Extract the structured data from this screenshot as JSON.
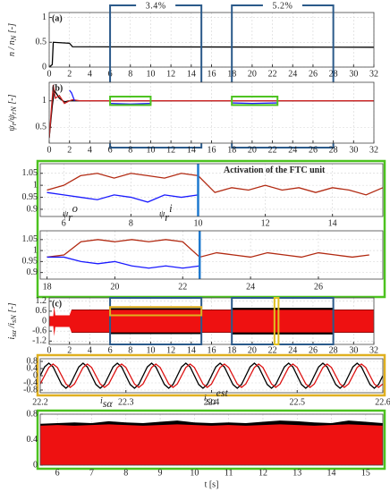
{
  "chart_data": [
    {
      "type": "line",
      "label": "(a)",
      "ylabel": [
        {
          "t": "n / n"
        },
        {
          "t": "N",
          "pos": "sub"
        },
        {
          "t": " [-]"
        }
      ],
      "xlim": [
        0,
        32
      ],
      "ylim": [
        0,
        1.1
      ],
      "xticks": [
        0,
        2,
        4,
        6,
        8,
        10,
        12,
        14,
        16,
        18,
        20,
        22,
        24,
        26,
        28,
        30,
        32
      ],
      "yticks": [
        0,
        0.5,
        1
      ],
      "grid": true,
      "series": [
        {
          "color": "#000000",
          "x": [
            0,
            0.3,
            0.4,
            2,
            2.3,
            32
          ],
          "values": [
            0,
            0.05,
            0.5,
            0.48,
            0.41,
            0.4
          ]
        }
      ],
      "regions": [
        {
          "x": [
            6,
            15
          ],
          "color": "#2b5a8a",
          "label": "3.4%"
        },
        {
          "x": [
            18,
            28
          ],
          "color": "#2b5a8a",
          "label": "5.2%"
        }
      ]
    },
    {
      "type": "line",
      "label": "(b)",
      "ylabel": [
        {
          "t": "ψ"
        },
        {
          "t": "r",
          "pos": "sub"
        },
        {
          "t": "/ψ"
        },
        {
          "t": "rN",
          "pos": "sub"
        },
        {
          "t": " [-]"
        }
      ],
      "xlim": [
        0,
        32
      ],
      "ylim": [
        0.2,
        1.35
      ],
      "xticks": [
        0,
        2,
        4,
        6,
        8,
        10,
        12,
        14,
        16,
        18,
        20,
        22,
        24,
        26,
        28,
        30,
        32
      ],
      "yticks": [
        0.5,
        1
      ],
      "grid": true,
      "series": [
        {
          "color": "#000000",
          "x": [
            0,
            0.3,
            0.5,
            1,
            1.5,
            2,
            2.5,
            32
          ],
          "values": [
            0.3,
            0.9,
            1.2,
            1.05,
            0.98,
            1,
            1,
            1
          ]
        },
        {
          "color": "#cc2222",
          "x": [
            0,
            0.4,
            0.6,
            1,
            1.5,
            2,
            2.3,
            3,
            32
          ],
          "values": [
            0.3,
            1.3,
            1.05,
            1.1,
            0.95,
            1,
            1.02,
            1,
            1
          ]
        },
        {
          "color": "#1a1aff",
          "x": [
            2,
            2.2,
            2.5,
            5,
            6,
            8,
            10,
            17,
            18,
            20,
            22.5
          ],
          "values": [
            1.2,
            1.15,
            1,
            null,
            0.95,
            0.94,
            0.95,
            null,
            0.96,
            0.95,
            0.96
          ]
        }
      ],
      "regions": [
        {
          "x": [
            6,
            10
          ],
          "y": [
            0.92,
            1.08
          ],
          "color": "#4cc21f"
        },
        {
          "x": [
            18,
            22.5
          ],
          "y": [
            0.92,
            1.08
          ],
          "color": "#4cc21f"
        }
      ]
    },
    {
      "type": "line",
      "xlim": [
        5.3,
        15.5
      ],
      "ylim": [
        0.87,
        1.09
      ],
      "xticks": [
        6,
        8,
        10,
        12,
        14
      ],
      "yticks": [
        0.9,
        0.95,
        1,
        1.05
      ],
      "grid": true,
      "series": [
        {
          "color": "#b22a12",
          "x": [
            5.5,
            6,
            6.5,
            7,
            7.5,
            8,
            8.5,
            9,
            9.5,
            10,
            10.5,
            11,
            11.5,
            12,
            12.5,
            13,
            13.5,
            14,
            14.5,
            15,
            15.5
          ],
          "values": [
            0.98,
            1.0,
            1.04,
            1.05,
            1.03,
            1.05,
            1.04,
            1.03,
            1.05,
            1.04,
            0.97,
            0.99,
            0.98,
            1.0,
            0.98,
            0.99,
            0.97,
            0.99,
            0.98,
            0.96,
            0.99
          ]
        },
        {
          "color": "#1a1aff",
          "x": [
            5.5,
            6,
            6.5,
            7,
            7.5,
            8,
            8.5,
            9,
            9.5,
            10
          ],
          "values": [
            0.97,
            0.96,
            0.95,
            0.94,
            0.96,
            0.95,
            0.93,
            0.96,
            0.95,
            0.96
          ]
        }
      ],
      "vlines": [
        {
          "x": 10,
          "color": "#1f7ad0"
        }
      ]
    },
    {
      "type": "line",
      "xlim": [
        17.8,
        27.9
      ],
      "ylim": [
        0.87,
        1.09
      ],
      "xticks": [
        18,
        20,
        22,
        24,
        26
      ],
      "yticks": [
        0.9,
        0.95,
        1,
        1.05
      ],
      "grid": true,
      "series": [
        {
          "color": "#b22a12",
          "x": [
            18,
            18.5,
            19,
            19.5,
            20,
            20.5,
            21,
            21.5,
            22,
            22.5,
            23,
            23.5,
            24,
            24.5,
            25,
            25.5,
            26,
            26.5,
            27,
            27.5
          ],
          "values": [
            0.97,
            0.98,
            1.04,
            1.05,
            1.04,
            1.05,
            1.04,
            1.05,
            1.04,
            0.97,
            0.99,
            0.98,
            0.97,
            0.99,
            0.98,
            0.97,
            0.99,
            0.98,
            0.97,
            0.98
          ]
        },
        {
          "color": "#1a1aff",
          "x": [
            18,
            18.5,
            19,
            19.5,
            20,
            20.5,
            21,
            21.5,
            22,
            22.5
          ],
          "values": [
            0.97,
            0.97,
            0.95,
            0.94,
            0.95,
            0.93,
            0.92,
            0.93,
            0.92,
            0.93
          ]
        }
      ],
      "vlines": [
        {
          "x": 22.5,
          "color": "#1f7ad0"
        }
      ]
    },
    {
      "type": "line",
      "label": "(c)",
      "ylabel": [
        {
          "t": "i"
        },
        {
          "t": "sα",
          "pos": "sub"
        },
        {
          "t": " /i"
        },
        {
          "t": "sN",
          "pos": "sub"
        },
        {
          "t": " [-]"
        }
      ],
      "xlim": [
        0,
        32
      ],
      "ylim": [
        -1.4,
        1.4
      ],
      "xticks": [
        0,
        2,
        4,
        6,
        8,
        10,
        12,
        14,
        16,
        18,
        20,
        22,
        24,
        26,
        28,
        30,
        32
      ],
      "yticks": [
        -1.2,
        -0.6,
        0,
        0.6,
        1.2
      ],
      "grid": true,
      "series": [
        {
          "color": "#000000",
          "style": "band",
          "x": [
            2.2,
            5.9,
            6,
            15,
            15.1,
            17.9,
            18,
            28,
            28.1,
            32
          ],
          "values": [
            0.7,
            0.7,
            0.78,
            0.78,
            0.7,
            0.7,
            0.8,
            0.8,
            0.7,
            0.7
          ],
          "lower": [
            -0.7,
            -0.7,
            -0.78,
            -0.78,
            -0.7,
            -0.7,
            -0.8,
            -0.8,
            -0.7,
            -0.7
          ]
        },
        {
          "color": "#ee1111",
          "style": "band",
          "x": [
            0,
            0.4,
            0.5,
            0.6,
            2,
            2.2,
            32
          ],
          "values": [
            0.3,
            0.3,
            0.9,
            0.35,
            0.35,
            0.68,
            0.68
          ],
          "lower": [
            -0.3,
            -0.3,
            -0.9,
            -0.35,
            -0.35,
            -0.68,
            -0.68
          ]
        }
      ],
      "regions": [
        {
          "x": [
            6,
            15
          ],
          "color": "#2b5a8a"
        },
        {
          "x": [
            18,
            28
          ],
          "color": "#2b5a8a"
        },
        {
          "x": [
            6,
            15
          ],
          "y": [
            0.35,
            0.85
          ],
          "color": "#e0b020"
        },
        {
          "x": [
            22.2,
            22.6
          ],
          "color": "#e0c020"
        }
      ]
    },
    {
      "type": "line",
      "xlim": [
        22.2,
        22.6
      ],
      "ylim": [
        -0.95,
        0.95
      ],
      "xticks": [
        22.2,
        22.3,
        22.4,
        22.5,
        22.6
      ],
      "yticks": [
        -0.8,
        -0.4,
        0,
        0.4,
        0.8
      ],
      "grid": true,
      "series": [
        {
          "color": "#000000",
          "x": [
            22.2,
            22.205,
            22.21,
            22.215,
            22.22,
            22.225,
            22.23,
            22.235,
            22.24,
            22.245,
            22.25,
            22.255,
            22.26,
            22.265,
            22.27,
            22.275,
            22.28,
            22.285,
            22.29,
            22.295,
            22.3,
            22.305,
            22.31,
            22.315,
            22.32,
            22.325,
            22.33,
            22.335,
            22.34,
            22.345,
            22.35,
            22.355,
            22.36,
            22.365,
            22.37,
            22.375,
            22.38,
            22.385,
            22.39,
            22.395,
            22.4,
            22.405,
            22.41,
            22.415,
            22.42,
            22.425,
            22.43,
            22.435,
            22.44,
            22.445,
            22.45,
            22.455,
            22.46,
            22.465,
            22.47,
            22.475,
            22.48,
            22.485,
            22.49,
            22.495,
            22.5,
            22.505,
            22.51,
            22.515,
            22.52,
            22.525,
            22.53,
            22.535,
            22.54,
            22.545,
            22.55,
            22.555,
            22.56,
            22.565,
            22.57,
            22.575,
            22.58,
            22.585,
            22.59,
            22.595,
            22.6
          ],
          "values": [
            0,
            0.49,
            0.7,
            0.49,
            0,
            -0.49,
            -0.7,
            -0.49,
            0,
            0.49,
            0.7,
            0.49,
            0,
            -0.49,
            -0.7,
            -0.49,
            0,
            0.49,
            0.7,
            0.49,
            0,
            -0.49,
            -0.7,
            -0.49,
            0,
            0.49,
            0.7,
            0.49,
            0,
            -0.49,
            -0.7,
            -0.49,
            0,
            0.49,
            0.7,
            0.49,
            0,
            -0.49,
            -0.7,
            -0.49,
            0,
            0.49,
            0.7,
            0.49,
            0,
            -0.49,
            -0.7,
            -0.49,
            0,
            0.49,
            0.7,
            0.49,
            0,
            -0.49,
            -0.7,
            -0.49,
            0,
            0.49,
            0.7,
            0.49,
            0,
            -0.49,
            -0.7,
            -0.49,
            0,
            0.49,
            0.7,
            0.49,
            0,
            -0.49,
            -0.7,
            -0.49,
            0,
            0.49,
            0.7,
            0.49,
            0,
            -0.49,
            -0.7,
            -0.49,
            0
          ]
        },
        {
          "color": "#dd1111",
          "x": [
            22.2,
            22.205,
            22.21,
            22.215,
            22.22,
            22.225,
            22.23,
            22.235,
            22.24,
            22.245,
            22.25,
            22.255,
            22.26,
            22.265,
            22.27,
            22.275,
            22.28,
            22.285,
            22.29,
            22.295,
            22.3,
            22.305,
            22.31,
            22.315,
            22.32,
            22.325,
            22.33,
            22.335,
            22.34,
            22.345,
            22.35,
            22.355,
            22.36,
            22.365,
            22.37,
            22.375,
            22.38,
            22.385,
            22.39,
            22.395,
            22.4,
            22.405,
            22.41,
            22.415,
            22.42,
            22.425,
            22.43,
            22.435,
            22.44,
            22.445,
            22.45,
            22.455,
            22.46,
            22.465,
            22.47,
            22.475,
            22.48,
            22.485,
            22.49,
            22.495,
            22.5,
            22.505,
            22.51,
            22.515,
            22.52,
            22.525,
            22.53,
            22.535,
            22.54,
            22.545,
            22.55,
            22.555,
            22.56,
            22.565,
            22.57,
            22.575,
            22.58,
            22.585,
            22.59,
            22.595,
            22.6
          ],
          "values": [
            -0.46,
            0,
            0.46,
            0.65,
            0.46,
            0,
            -0.46,
            -0.65,
            -0.46,
            0,
            0.46,
            0.65,
            0.46,
            0,
            -0.46,
            -0.65,
            -0.46,
            0,
            0.46,
            0.65,
            0.46,
            0,
            -0.46,
            -0.65,
            -0.46,
            0,
            0.46,
            0.65,
            0.46,
            0,
            -0.46,
            -0.65,
            -0.46,
            0,
            0.46,
            0.65,
            0.46,
            0,
            -0.46,
            -0.65,
            -0.46,
            0,
            0.46,
            0.65,
            0.46,
            0,
            -0.46,
            -0.65,
            -0.46,
            0,
            0.46,
            0.65,
            0.46,
            0,
            -0.46,
            -0.65,
            -0.46,
            0,
            0.46,
            0.65,
            0.46,
            0,
            -0.46,
            -0.65,
            -0.46,
            0,
            0.46,
            0.65,
            0.46,
            0,
            -0.46,
            -0.65,
            -0.46,
            0,
            0.46,
            0.65,
            0.46,
            0,
            -0.46,
            -0.65,
            -0.46
          ]
        }
      ]
    },
    {
      "type": "line",
      "xlabel": "t [s]",
      "xlim": [
        5.5,
        15.5
      ],
      "ylim": [
        0,
        0.8
      ],
      "xticks": [
        6,
        7,
        8,
        9,
        10,
        11,
        12,
        13,
        14,
        15
      ],
      "yticks": [
        0,
        0.4,
        0.8
      ],
      "grid": true,
      "series": [
        {
          "color": "#000000",
          "style": "area",
          "x": [
            5.5,
            6,
            6.5,
            7,
            7.5,
            8,
            8.5,
            9,
            9.5,
            10,
            10.5,
            11,
            11.5,
            12,
            12.5,
            13,
            13.5,
            14,
            14.5,
            15,
            15.5
          ],
          "values": [
            0.65,
            0.66,
            0.67,
            0.66,
            0.69,
            0.67,
            0.66,
            0.68,
            0.7,
            0.67,
            0.66,
            0.67,
            0.66,
            0.68,
            0.7,
            0.69,
            0.67,
            0.66,
            0.7,
            0.68,
            0.66
          ]
        },
        {
          "color": "#ee1111",
          "style": "area",
          "x": [
            5.5,
            6,
            6.5,
            7,
            7.5,
            8,
            8.5,
            9,
            9.5,
            10,
            10.5,
            11,
            11.5,
            12,
            12.5,
            13,
            13.5,
            14,
            14.5,
            15,
            15.5
          ],
          "values": [
            0.62,
            0.63,
            0.62,
            0.63,
            0.64,
            0.63,
            0.62,
            0.63,
            0.64,
            0.63,
            0.62,
            0.63,
            0.62,
            0.63,
            0.64,
            0.63,
            0.62,
            0.63,
            0.64,
            0.63,
            0.62
          ]
        }
      ]
    }
  ],
  "annotations": [
    {
      "parts": [
        {
          "t": "Activation of the FTC unit"
        }
      ]
    },
    {
      "parts": [
        {
          "t": "ψ"
        },
        {
          "t": "r",
          "pos": "sub"
        },
        {
          "t": "o",
          "pos": "sup"
        }
      ]
    },
    {
      "parts": [
        {
          "t": "ψ"
        },
        {
          "t": "r",
          "pos": "sub"
        },
        {
          "t": "i",
          "pos": "sup"
        }
      ]
    },
    {
      "parts": [
        {
          "t": "i"
        },
        {
          "t": "sα",
          "pos": "sub"
        }
      ]
    },
    {
      "parts": [
        {
          "t": "i"
        },
        {
          "t": "sα",
          "pos": "sub"
        },
        {
          "t": "est",
          "pos": "sup"
        }
      ]
    }
  ]
}
